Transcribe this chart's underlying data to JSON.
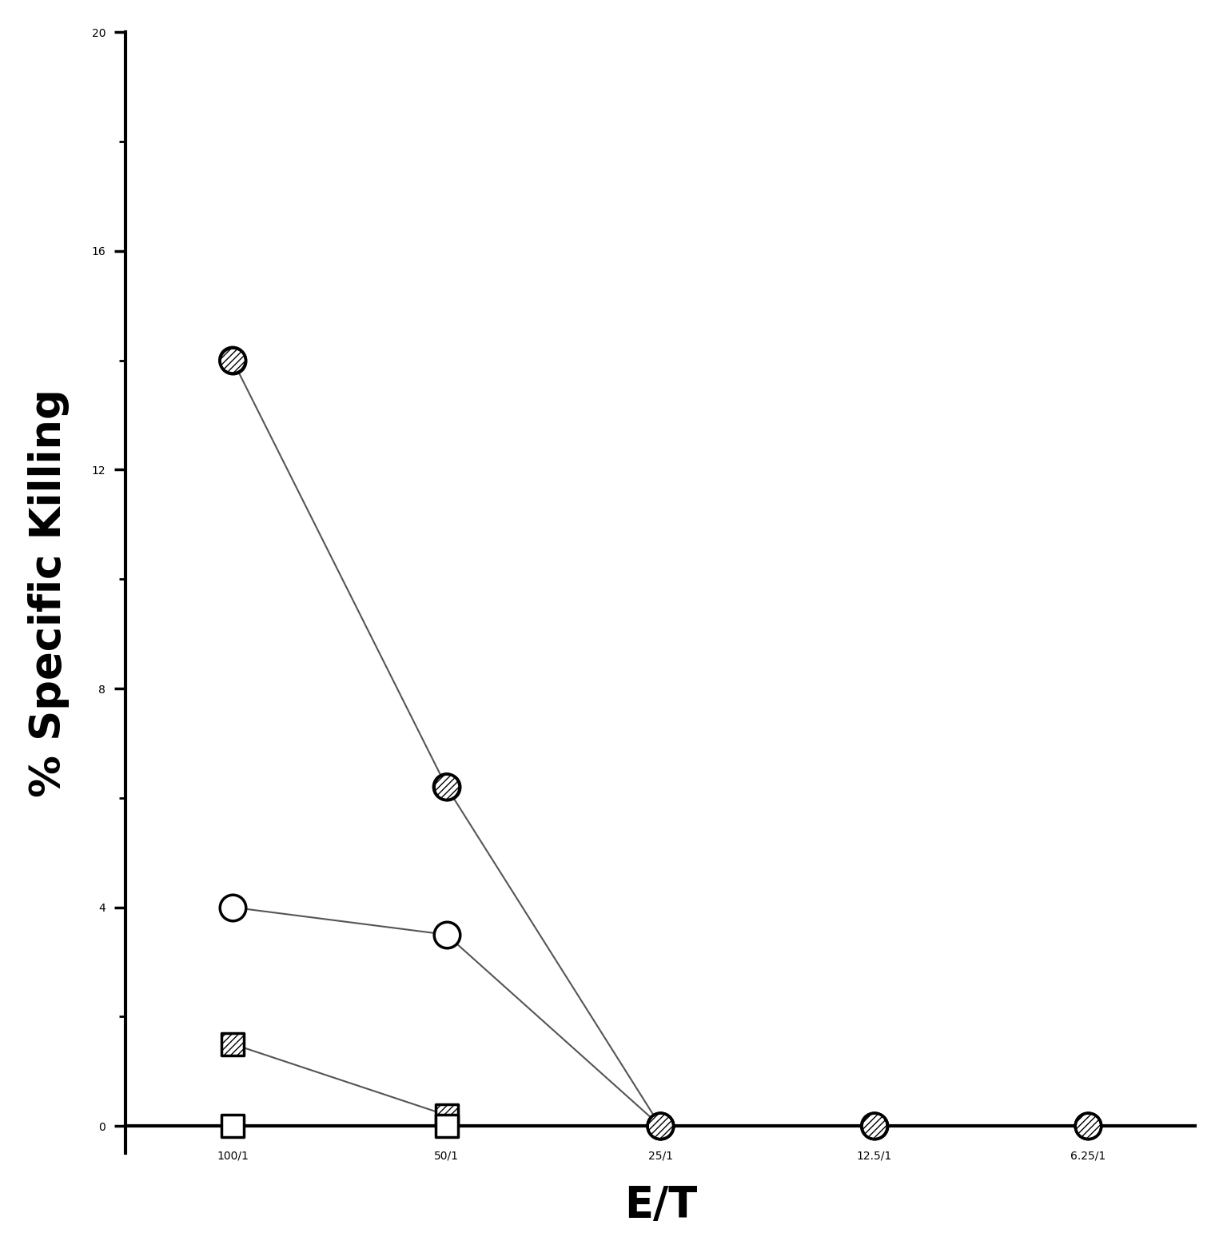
{
  "x_labels": [
    "100/1",
    "50/1",
    "25/1",
    "12.5/1",
    "6.25/1"
  ],
  "x_values": [
    0,
    1,
    2,
    3,
    4
  ],
  "series": [
    {
      "name": "hatched_circle",
      "x": [
        0,
        1,
        2,
        3,
        4
      ],
      "y": [
        14.0,
        6.2,
        0.0,
        0.0,
        0.0
      ],
      "marker": "circle_hatched",
      "markersize": 550
    },
    {
      "name": "open_circle",
      "x": [
        0,
        1,
        2
      ],
      "y": [
        4.0,
        3.5,
        0.0
      ],
      "marker": "circle_open",
      "markersize": 550
    },
    {
      "name": "hatched_square",
      "x": [
        0,
        1
      ],
      "y": [
        1.5,
        0.2
      ],
      "marker": "square_hatched",
      "markersize": 400
    },
    {
      "name": "open_square",
      "x": [
        0,
        1
      ],
      "y": [
        0.0,
        0.0
      ],
      "marker": "square_open",
      "markersize": 400
    }
  ],
  "ylim": [
    -0.5,
    20
  ],
  "yticks": [
    0,
    4,
    8,
    12,
    16,
    20
  ],
  "ylabel": "% Specific Killing",
  "xlabel": "E/T",
  "background_color": "#ffffff",
  "line_color": "#555555",
  "line_width": 1.5,
  "axis_linewidth": 3.0,
  "tick_fontsize": 28,
  "label_fontsize": 38,
  "ylabel_fontsize": 38
}
